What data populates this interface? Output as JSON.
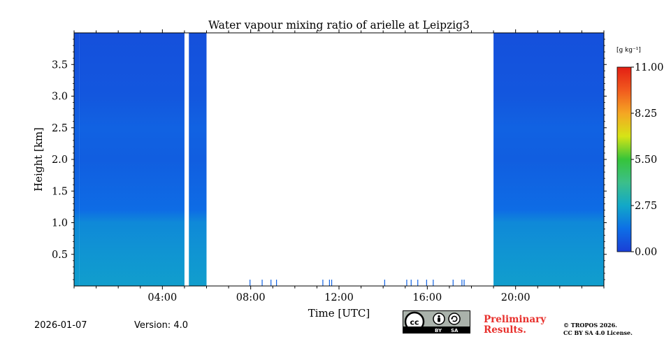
{
  "chart_data": {
    "type": "heatmap",
    "title": "Water vapour mixing ratio of arielle at Leipzig3",
    "xlabel": "Time [UTC]",
    "ylabel": "Height [km]",
    "xlim_hours": [
      0,
      24
    ],
    "ylim_km": [
      0,
      4.0
    ],
    "x_ticks": [
      {
        "hour": 4,
        "label": "04:00"
      },
      {
        "hour": 8,
        "label": "08:00"
      },
      {
        "hour": 12,
        "label": "12:00"
      },
      {
        "hour": 16,
        "label": "16:00"
      },
      {
        "hour": 20,
        "label": "20:00"
      }
    ],
    "y_ticks": [
      {
        "value": 0.5,
        "label": "0.5"
      },
      {
        "value": 1.0,
        "label": "1.0"
      },
      {
        "value": 1.5,
        "label": "1.5"
      },
      {
        "value": 2.0,
        "label": "2.0"
      },
      {
        "value": 2.5,
        "label": "2.5"
      },
      {
        "value": 3.0,
        "label": "3.0"
      },
      {
        "value": 3.5,
        "label": "3.5"
      }
    ],
    "colorbar": {
      "unit_label": "[g kg⁻¹]",
      "range": [
        0,
        11
      ],
      "ticks": [
        {
          "value": 0.0,
          "label": "0.00"
        },
        {
          "value": 2.75,
          "label": "2.75"
        },
        {
          "value": 5.5,
          "label": "5.50"
        },
        {
          "value": 8.25,
          "label": "8.25"
        },
        {
          "value": 11.0,
          "label": "11.00"
        }
      ],
      "colors": [
        "#1a3fd6",
        "#0d6fe6",
        "#12a8c8",
        "#3cbf8a",
        "#36c43a",
        "#d6e416",
        "#f5a623",
        "#f15a1e",
        "#e31f14"
      ]
    },
    "data_blocks": [
      {
        "start_hour": 0.0,
        "end_hour": 0.25,
        "note": "measurements"
      },
      {
        "start_hour": 0.25,
        "end_hour": 5.0,
        "note": "measurements"
      },
      {
        "start_hour": 5.2,
        "end_hour": 6.0,
        "note": "measurements"
      },
      {
        "start_hour": 19.0,
        "end_hour": 24.0,
        "note": "measurements"
      }
    ],
    "profile_layers_g_per_kg": [
      {
        "height_km": 0.0,
        "value": 2.5
      },
      {
        "height_km": 0.5,
        "value": 2.3
      },
      {
        "height_km": 1.0,
        "value": 2.0
      },
      {
        "height_km": 1.2,
        "value": 1.3
      },
      {
        "height_km": 2.0,
        "value": 0.9
      },
      {
        "height_km": 2.5,
        "value": 1.0
      },
      {
        "height_km": 3.0,
        "value": 0.7
      },
      {
        "height_km": 4.0,
        "value": 0.5
      }
    ],
    "spike_hours": [
      7.95,
      8.5,
      8.9,
      9.15,
      11.25,
      11.55,
      11.65,
      14.05,
      15.05,
      15.25,
      15.55,
      15.95,
      16.25,
      17.15,
      17.55,
      17.65
    ]
  },
  "footer": {
    "date": "2026-01-07",
    "version": "Version: 4.0",
    "preliminary_line1": "Preliminary",
    "preliminary_line2": "Results.",
    "copyright_line1": "© TROPOS 2026.",
    "copyright_line2": "CC BY SA 4.0 License.",
    "badge_by": "BY",
    "badge_sa": "SA"
  }
}
